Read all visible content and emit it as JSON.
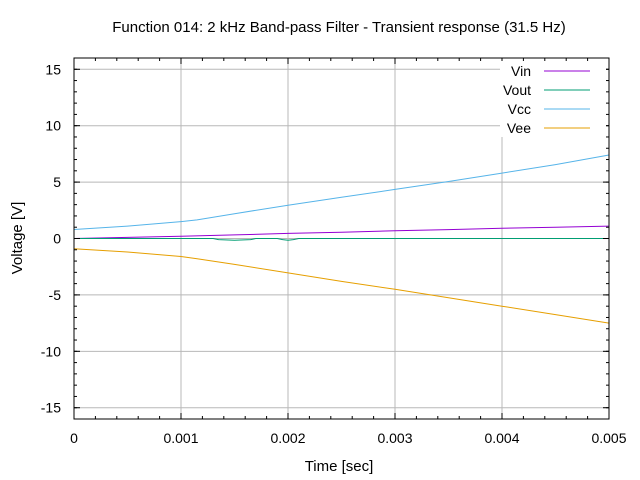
{
  "chart_data": {
    "type": "line",
    "title": "Function 014: 2 kHz Band-pass Filter - Transient response (31.5 Hz)",
    "xlabel": "Time [sec]",
    "ylabel": "Voltage [V]",
    "xlim": [
      0,
      0.005
    ],
    "ylim": [
      -16,
      16
    ],
    "xticks": [
      0,
      0.001,
      0.002,
      0.003,
      0.004,
      0.005
    ],
    "xtick_labels": [
      "0",
      "0.001",
      "0.002",
      "0.003",
      "0.004",
      "0.005"
    ],
    "yticks": [
      -15,
      -10,
      -5,
      0,
      5,
      10,
      15
    ],
    "ytick_labels": [
      "-15",
      "-10",
      "-5",
      "0",
      "5",
      "10",
      "15"
    ],
    "grid": true,
    "legend_position": "top-right",
    "series": [
      {
        "name": "Vin",
        "color": "#9400d3",
        "x": [
          0,
          0.0005,
          0.001,
          0.0015,
          0.002,
          0.0025,
          0.003,
          0.0035,
          0.004,
          0.0045,
          0.005
        ],
        "y": [
          0.0,
          0.1,
          0.2,
          0.32,
          0.45,
          0.56,
          0.68,
          0.79,
          0.9,
          1.0,
          1.1
        ]
      },
      {
        "name": "Vout",
        "color": "#009e73",
        "x": [
          0,
          0.0013,
          0.00135,
          0.0015,
          0.00165,
          0.0017,
          0.0019,
          0.00195,
          0.002,
          0.00205,
          0.0021,
          0.005
        ],
        "y": [
          0.0,
          0.0,
          -0.1,
          -0.15,
          -0.1,
          0.0,
          0.0,
          -0.1,
          -0.15,
          -0.1,
          0.0,
          0.0
        ]
      },
      {
        "name": "Vcc",
        "color": "#56b4e9",
        "x": [
          0,
          0.0005,
          0.001,
          0.00115,
          0.0015,
          0.002,
          0.0025,
          0.003,
          0.0035,
          0.004,
          0.0045,
          0.005
        ],
        "y": [
          0.8,
          1.1,
          1.5,
          1.65,
          2.2,
          2.95,
          3.65,
          4.35,
          5.05,
          5.8,
          6.55,
          7.4
        ]
      },
      {
        "name": "Vee",
        "color": "#e69f00",
        "x": [
          0,
          0.0005,
          0.001,
          0.00115,
          0.0015,
          0.002,
          0.0025,
          0.003,
          0.0035,
          0.004,
          0.0045,
          0.005
        ],
        "y": [
          -0.9,
          -1.2,
          -1.6,
          -1.8,
          -2.3,
          -3.05,
          -3.8,
          -4.5,
          -5.25,
          -6.0,
          -6.75,
          -7.5
        ]
      }
    ]
  }
}
